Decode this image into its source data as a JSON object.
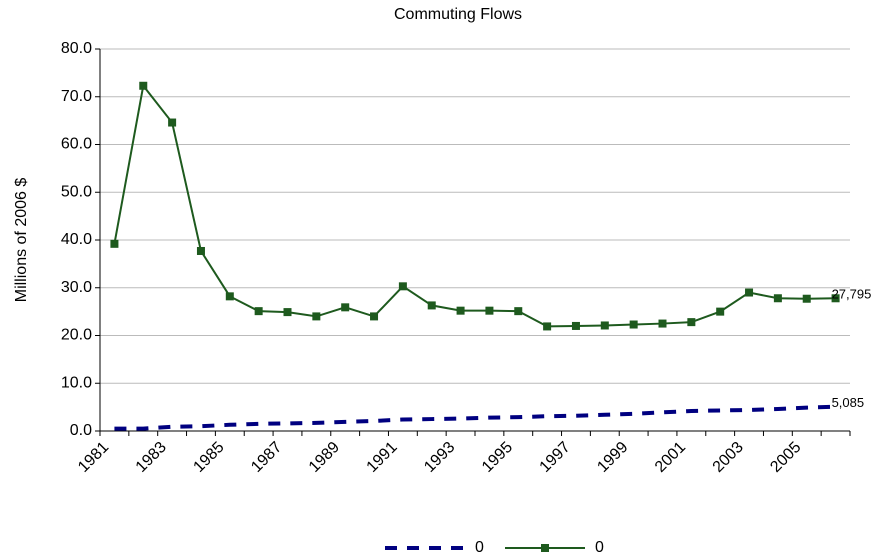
{
  "chart_data": {
    "type": "line",
    "title": "Commuting Flows",
    "y_label": "Millions of 2006 $",
    "categories": [
      "1981",
      null,
      "1983",
      null,
      "1985",
      null,
      "1987",
      null,
      "1989",
      null,
      "1991",
      null,
      "1993",
      null,
      "1995",
      null,
      "1997",
      null,
      "1999",
      null,
      "2001",
      null,
      "2003",
      null,
      "2005",
      null
    ],
    "series": [
      {
        "name": "0",
        "color": "#000080",
        "style": "dashed",
        "values": [
          0.5,
          0.5,
          0.9,
          1.0,
          1.3,
          1.5,
          1.6,
          1.7,
          1.9,
          2.1,
          2.4,
          2.5,
          2.6,
          2.8,
          2.9,
          3.1,
          3.2,
          3.4,
          3.6,
          3.9,
          4.2,
          4.3,
          4.4,
          4.6,
          4.9,
          5.085
        ],
        "value_labels": [
          null,
          null,
          null,
          null,
          null,
          null,
          null,
          null,
          null,
          null,
          null,
          null,
          null,
          null,
          null,
          null,
          null,
          null,
          null,
          null,
          null,
          null,
          null,
          null,
          null,
          "5,085"
        ]
      },
      {
        "name": "0",
        "color": "#1e5a1e",
        "style": "solid-square",
        "values": [
          39.2,
          72.3,
          64.6,
          37.7,
          28.2,
          25.1,
          24.9,
          24.0,
          25.9,
          24.0,
          30.3,
          26.3,
          25.2,
          25.2,
          25.1,
          21.9,
          22.0,
          22.1,
          22.3,
          22.5,
          22.8,
          25.0,
          29.0,
          27.8,
          27.7,
          27.795
        ],
        "value_labels": [
          null,
          null,
          null,
          null,
          null,
          null,
          null,
          null,
          null,
          null,
          null,
          null,
          null,
          null,
          null,
          null,
          null,
          null,
          null,
          null,
          null,
          null,
          null,
          null,
          null,
          "27,795"
        ]
      }
    ],
    "ylim": [
      0,
      80
    ],
    "yticks": [
      {
        "value": 0,
        "label": "0.0"
      },
      {
        "value": 10,
        "label": "10.0"
      },
      {
        "value": 20,
        "label": "20.0"
      },
      {
        "value": 30,
        "label": "30.0"
      },
      {
        "value": 40,
        "label": "40.0"
      },
      {
        "value": 50,
        "label": "50.0"
      },
      {
        "value": 60,
        "label": "60.0"
      },
      {
        "value": 70,
        "label": "70.0"
      },
      {
        "value": 80,
        "label": "80.0"
      }
    ],
    "grid": true,
    "legend": "bottom"
  }
}
